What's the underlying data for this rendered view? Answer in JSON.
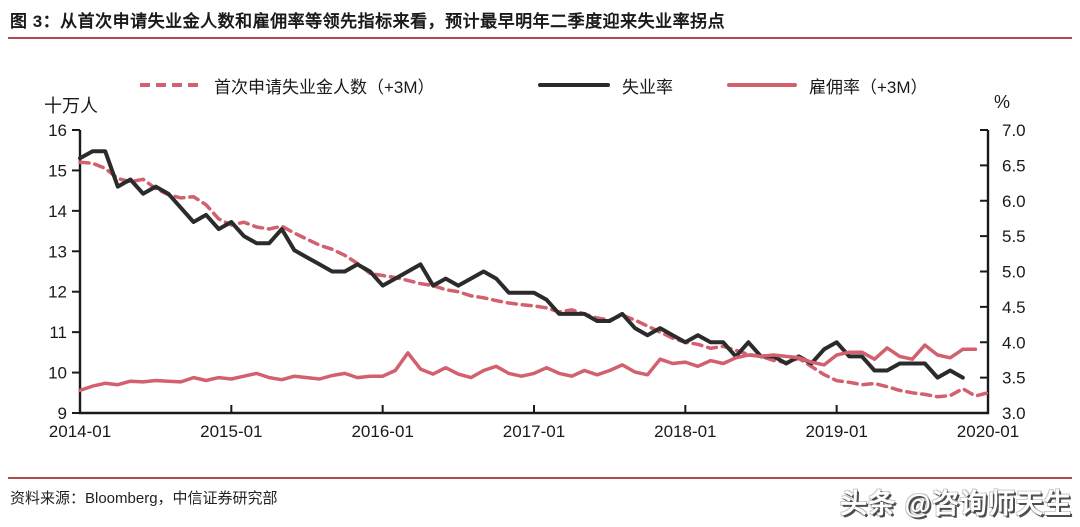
{
  "title": {
    "text": "图 3：从首次申请失业金人数和雇佣率等领先指标来看，预计最早明年二季度迎来失业率拐点"
  },
  "chart_data": {
    "type": "line",
    "x_tick_labels": [
      "2014-01",
      "2015-01",
      "2016-01",
      "2017-01",
      "2018-01",
      "2019-01",
      "2020-01"
    ],
    "x_unit": "month",
    "left_axis": {
      "unit": "十万人",
      "range": [
        9,
        16
      ],
      "ticks": [
        "16",
        "15",
        "14",
        "13",
        "12",
        "11",
        "10",
        "9"
      ]
    },
    "right_axis": {
      "unit": "%",
      "range": [
        3.0,
        7.0
      ],
      "ticks": [
        "7.0",
        "6.5",
        "6.0",
        "5.5",
        "5.0",
        "4.5",
        "4.0",
        "3.5",
        "3.0"
      ]
    },
    "axis_color": "#1a1a1a",
    "grid": false,
    "legend_position": "top",
    "legend": [
      {
        "label": "首次申请失业金人数（+3M）",
        "style": "dashed",
        "color": "#d2606f"
      },
      {
        "label": "失业率",
        "style": "solid",
        "color": "#2b2b2b"
      },
      {
        "label": "雇佣率（+3M）",
        "style": "solid",
        "color": "#d2606f"
      }
    ],
    "series": [
      {
        "name": "首次申请失业金人数（+3M）",
        "axis": "left",
        "color": "#d2606f",
        "dashed": true,
        "width": 3.5,
        "start": "2014-01",
        "values": [
          15.2,
          15.18,
          15.05,
          14.8,
          14.72,
          14.78,
          14.55,
          14.4,
          14.32,
          14.35,
          14.15,
          13.8,
          13.65,
          13.72,
          13.6,
          13.55,
          13.62,
          13.45,
          13.3,
          13.15,
          13.05,
          12.9,
          12.7,
          12.45,
          12.4,
          12.35,
          12.28,
          12.2,
          12.15,
          12.05,
          12.0,
          11.9,
          11.85,
          11.78,
          11.72,
          11.68,
          11.65,
          11.6,
          11.5,
          11.55,
          11.45,
          11.35,
          11.3,
          11.42,
          11.3,
          11.15,
          11.0,
          10.85,
          10.75,
          10.7,
          10.6,
          10.65,
          10.55,
          10.45,
          10.4,
          10.3,
          10.25,
          10.35,
          10.15,
          9.95,
          9.8,
          9.76,
          9.7,
          9.73,
          9.65,
          9.56,
          9.5,
          9.46,
          9.4,
          9.43,
          9.6,
          9.42,
          9.5
        ]
      },
      {
        "name": "失业率",
        "axis": "right",
        "color": "#2b2b2b",
        "dashed": false,
        "width": 4,
        "start": "2014-01",
        "values": [
          6.6,
          6.7,
          6.7,
          6.2,
          6.3,
          6.1,
          6.2,
          6.1,
          5.9,
          5.7,
          5.8,
          5.6,
          5.7,
          5.5,
          5.4,
          5.4,
          5.6,
          5.3,
          5.2,
          5.1,
          5.0,
          5.0,
          5.1,
          5.0,
          4.8,
          4.9,
          5.0,
          5.1,
          4.8,
          4.9,
          4.8,
          4.9,
          5.0,
          4.9,
          4.7,
          4.7,
          4.7,
          4.6,
          4.4,
          4.4,
          4.4,
          4.3,
          4.3,
          4.4,
          4.2,
          4.1,
          4.2,
          4.1,
          4.0,
          4.1,
          4.0,
          4.0,
          3.8,
          4.0,
          3.8,
          3.8,
          3.7,
          3.8,
          3.7,
          3.9,
          4.0,
          3.8,
          3.8,
          3.6,
          3.6,
          3.7,
          3.7,
          3.7,
          3.5,
          3.6,
          3.5
        ]
      },
      {
        "name": "雇佣率（+3M）",
        "axis": "right",
        "color": "#d2606f",
        "dashed": false,
        "width": 3.5,
        "start": "2014-01",
        "values": [
          3.32,
          3.38,
          3.42,
          3.4,
          3.45,
          3.44,
          3.46,
          3.45,
          3.44,
          3.5,
          3.46,
          3.5,
          3.48,
          3.52,
          3.56,
          3.5,
          3.47,
          3.52,
          3.5,
          3.48,
          3.53,
          3.56,
          3.5,
          3.52,
          3.52,
          3.6,
          3.85,
          3.62,
          3.55,
          3.64,
          3.55,
          3.5,
          3.6,
          3.66,
          3.56,
          3.52,
          3.56,
          3.64,
          3.56,
          3.52,
          3.6,
          3.54,
          3.6,
          3.68,
          3.58,
          3.54,
          3.76,
          3.7,
          3.72,
          3.66,
          3.74,
          3.7,
          3.78,
          3.82,
          3.8,
          3.82,
          3.8,
          3.78,
          3.72,
          3.68,
          3.82,
          3.86,
          3.86,
          3.76,
          3.92,
          3.8,
          3.76,
          3.96,
          3.82,
          3.78,
          3.9,
          3.9
        ]
      }
    ]
  },
  "source": {
    "text": "资料来源：Bloomberg，中信证券研究部"
  },
  "watermark": {
    "text": "头条 @咨询师天生"
  }
}
